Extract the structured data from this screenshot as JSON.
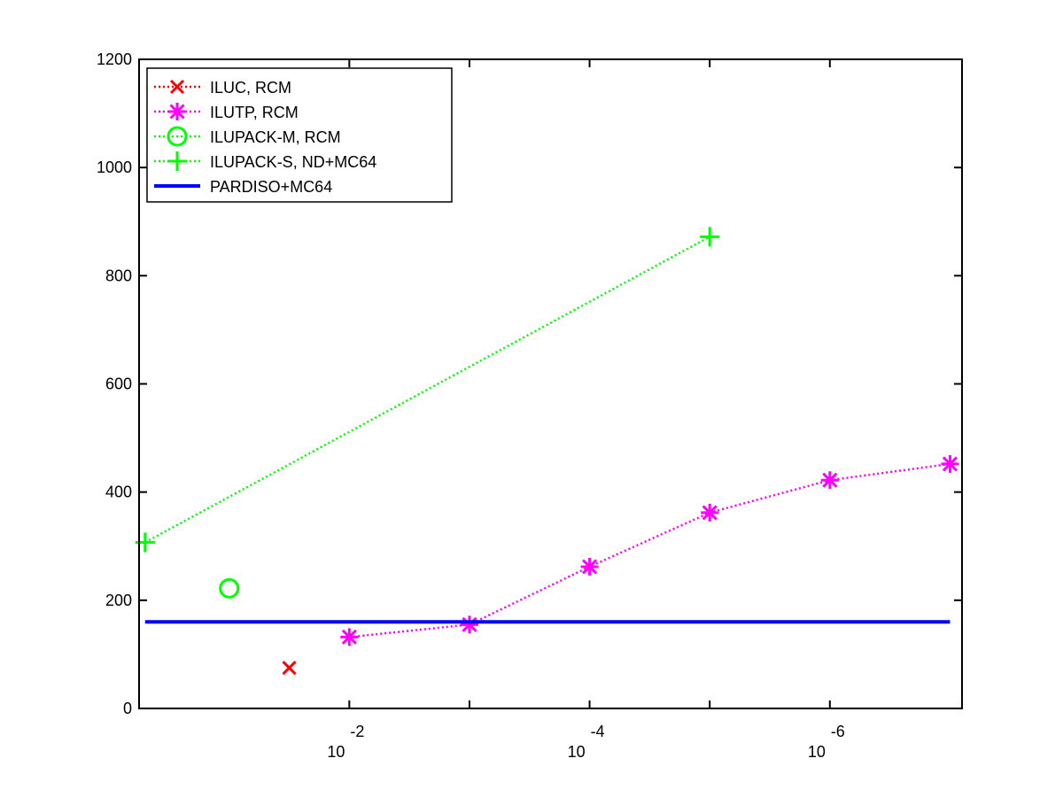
{
  "chart_data": {
    "type": "line",
    "title": "",
    "xlabel": "",
    "ylabel": "",
    "ylim": [
      0,
      1200
    ],
    "xlim": [
      0.25,
      7.1
    ],
    "x_scale_note": "x axis shows powers of ten, decreasing to the right",
    "grid": false,
    "legend_placement": "top-left",
    "y_ticks": [
      "0",
      "200",
      "400",
      "600",
      "800",
      "1000",
      "1200"
    ],
    "x_ticks": [
      {
        "base": "10",
        "exp": "-2",
        "pos": 2
      },
      {
        "base": "10",
        "exp": "-4",
        "pos": 4
      },
      {
        "base": "10",
        "exp": "-6",
        "pos": 6
      }
    ],
    "x_minor_ticks": [
      3,
      5
    ],
    "series": [
      {
        "name": "ILUC, RCM",
        "color": "#ff0000",
        "marker": "x",
        "line": "dotted",
        "x": [
          1.5
        ],
        "y": [
          75
        ]
      },
      {
        "name": "ILUTP, RCM",
        "color": "#ff00ff",
        "marker": "asterisk",
        "line": "dotted",
        "x": [
          2,
          3,
          4,
          5,
          6,
          7
        ],
        "y": [
          132,
          155,
          262,
          362,
          422,
          452
        ]
      },
      {
        "name": "ILUPACK-M, RCM",
        "color": "#00ff00",
        "marker": "circle",
        "line": "dotted",
        "x": [
          1
        ],
        "y": [
          222
        ]
      },
      {
        "name": "ILUPACK-S, ND+MC64",
        "color": "#00ff00",
        "marker": "plus",
        "line": "dotted",
        "x": [
          0.3,
          5
        ],
        "y": [
          307,
          872
        ]
      },
      {
        "name": "PARDISO+MC64",
        "color": "#0000ff",
        "marker": "none",
        "line": "solid",
        "x": [
          0.3,
          7
        ],
        "y": [
          160,
          160
        ]
      }
    ]
  }
}
